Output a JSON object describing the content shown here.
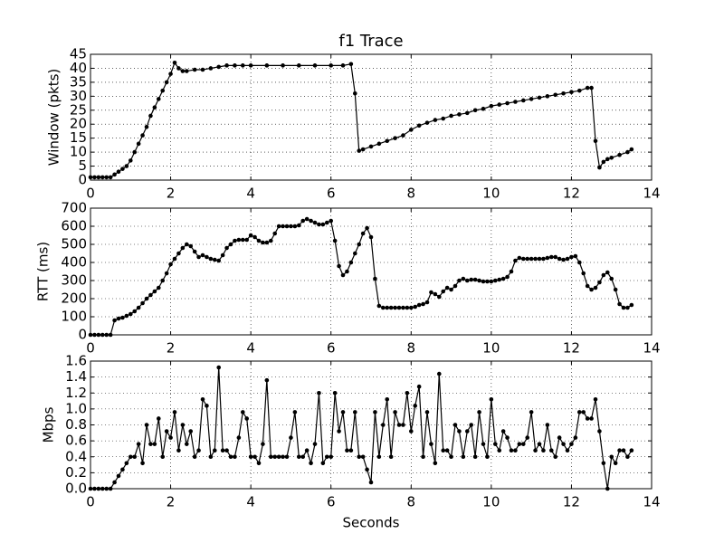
{
  "chart_data": [
    {
      "type": "line",
      "title": "f1 Trace",
      "y_label": "Window (pkts)",
      "color": "#000000",
      "grid": true,
      "x": [
        0,
        0.1,
        0.2,
        0.3,
        0.4,
        0.5,
        0.6,
        0.7,
        0.8,
        0.9,
        1.0,
        1.1,
        1.2,
        1.3,
        1.4,
        1.5,
        1.6,
        1.7,
        1.8,
        1.9,
        2.0,
        2.1,
        2.2,
        2.3,
        2.4,
        2.6,
        2.8,
        3.0,
        3.2,
        3.4,
        3.6,
        3.8,
        4.0,
        4.4,
        4.8,
        5.2,
        5.6,
        6.0,
        6.3,
        6.5,
        6.6,
        6.7,
        6.8,
        7.0,
        7.2,
        7.4,
        7.6,
        7.8,
        8.0,
        8.2,
        8.4,
        8.6,
        8.8,
        9.0,
        9.2,
        9.4,
        9.6,
        9.8,
        10.0,
        10.2,
        10.4,
        10.6,
        10.8,
        11.0,
        11.2,
        11.4,
        11.6,
        11.8,
        12.0,
        12.2,
        12.4,
        12.5,
        12.6,
        12.7,
        12.8,
        12.9,
        13.0,
        13.2,
        13.4,
        13.5
      ],
      "values": [
        1,
        1,
        1,
        1,
        1,
        1,
        2,
        3,
        4,
        5,
        7,
        10,
        13,
        16,
        19,
        23,
        26,
        29,
        32,
        35,
        38,
        42,
        40,
        39,
        39,
        39.5,
        39.5,
        40,
        40.5,
        41,
        41,
        41,
        41,
        41,
        41,
        41,
        41,
        41,
        41,
        41.5,
        31,
        10.5,
        11,
        12,
        13,
        14,
        15,
        16,
        18,
        19.5,
        20.5,
        21.5,
        22,
        23,
        23.5,
        24,
        25,
        25.5,
        26.5,
        27,
        27.5,
        28,
        28.5,
        29,
        29.5,
        30,
        30.5,
        31,
        31.5,
        32,
        33,
        33,
        14,
        4.5,
        6.5,
        7.5,
        8,
        9,
        10,
        11
      ],
      "xlim": [
        0,
        14
      ],
      "xticks": [
        0,
        2,
        4,
        6,
        8,
        10,
        12,
        14
      ],
      "ylim": [
        0,
        45
      ],
      "yticks": [
        0,
        5,
        10,
        15,
        20,
        25,
        30,
        35,
        40,
        45
      ]
    },
    {
      "type": "line",
      "y_label": "RTT (ms)",
      "color": "#000000",
      "grid": true,
      "x": [
        0,
        0.1,
        0.2,
        0.3,
        0.4,
        0.5,
        0.6,
        0.7,
        0.8,
        0.9,
        1.0,
        1.1,
        1.2,
        1.3,
        1.4,
        1.5,
        1.6,
        1.7,
        1.8,
        1.9,
        2.0,
        2.1,
        2.2,
        2.3,
        2.4,
        2.5,
        2.6,
        2.7,
        2.8,
        2.9,
        3.0,
        3.1,
        3.2,
        3.3,
        3.4,
        3.5,
        3.6,
        3.7,
        3.8,
        3.9,
        4.0,
        4.1,
        4.2,
        4.3,
        4.4,
        4.5,
        4.6,
        4.7,
        4.8,
        4.9,
        5.0,
        5.1,
        5.2,
        5.3,
        5.4,
        5.5,
        5.6,
        5.7,
        5.8,
        5.9,
        6.0,
        6.1,
        6.2,
        6.3,
        6.4,
        6.5,
        6.6,
        6.7,
        6.8,
        6.9,
        7.0,
        7.1,
        7.2,
        7.3,
        7.4,
        7.5,
        7.6,
        7.7,
        7.8,
        7.9,
        8.0,
        8.1,
        8.2,
        8.3,
        8.4,
        8.5,
        8.6,
        8.7,
        8.8,
        8.9,
        9.0,
        9.1,
        9.2,
        9.3,
        9.4,
        9.5,
        9.6,
        9.7,
        9.8,
        9.9,
        10.0,
        10.1,
        10.2,
        10.3,
        10.4,
        10.5,
        10.6,
        10.7,
        10.8,
        10.9,
        11.0,
        11.1,
        11.2,
        11.3,
        11.4,
        11.5,
        11.6,
        11.7,
        11.8,
        11.9,
        12.0,
        12.1,
        12.2,
        12.3,
        12.4,
        12.5,
        12.6,
        12.7,
        12.8,
        12.9,
        13.0,
        13.1,
        13.2,
        13.3,
        13.4,
        13.5
      ],
      "values": [
        0,
        0,
        0,
        0,
        0,
        0,
        80,
        90,
        95,
        105,
        115,
        130,
        150,
        175,
        200,
        220,
        240,
        260,
        300,
        340,
        390,
        420,
        450,
        480,
        500,
        490,
        460,
        430,
        440,
        430,
        420,
        415,
        410,
        440,
        480,
        500,
        520,
        525,
        525,
        525,
        550,
        540,
        520,
        510,
        510,
        520,
        560,
        600,
        600,
        600,
        600,
        600,
        605,
        630,
        640,
        630,
        620,
        610,
        610,
        620,
        630,
        520,
        380,
        330,
        350,
        400,
        450,
        500,
        560,
        590,
        540,
        310,
        160,
        150,
        150,
        150,
        150,
        150,
        150,
        150,
        150,
        155,
        165,
        170,
        180,
        235,
        225,
        210,
        240,
        260,
        250,
        270,
        300,
        310,
        300,
        305,
        305,
        300,
        295,
        295,
        295,
        300,
        305,
        310,
        320,
        350,
        410,
        425,
        420,
        420,
        420,
        420,
        420,
        420,
        425,
        430,
        430,
        420,
        415,
        420,
        430,
        435,
        400,
        340,
        270,
        250,
        260,
        290,
        330,
        345,
        310,
        250,
        170,
        150,
        150,
        165
      ],
      "xlim": [
        0,
        14
      ],
      "xticks": [
        0,
        2,
        4,
        6,
        8,
        10,
        12,
        14
      ],
      "ylim": [
        0,
        700
      ],
      "yticks": [
        0,
        100,
        200,
        300,
        400,
        500,
        600,
        700
      ]
    },
    {
      "type": "line",
      "y_label": "Mbps",
      "x_label": "Seconds",
      "color": "#000000",
      "grid": true,
      "x": [
        0,
        0.1,
        0.2,
        0.3,
        0.4,
        0.5,
        0.6,
        0.7,
        0.8,
        0.9,
        1.0,
        1.1,
        1.2,
        1.3,
        1.4,
        1.5,
        1.6,
        1.7,
        1.8,
        1.9,
        2.0,
        2.1,
        2.2,
        2.3,
        2.4,
        2.5,
        2.6,
        2.7,
        2.8,
        2.9,
        3.0,
        3.1,
        3.2,
        3.3,
        3.4,
        3.5,
        3.6,
        3.7,
        3.8,
        3.9,
        4.0,
        4.1,
        4.2,
        4.3,
        4.4,
        4.5,
        4.6,
        4.7,
        4.8,
        4.9,
        5.0,
        5.1,
        5.2,
        5.3,
        5.4,
        5.5,
        5.6,
        5.7,
        5.8,
        5.9,
        6.0,
        6.1,
        6.2,
        6.3,
        6.4,
        6.5,
        6.6,
        6.7,
        6.8,
        6.9,
        7.0,
        7.1,
        7.2,
        7.3,
        7.4,
        7.5,
        7.6,
        7.7,
        7.8,
        7.9,
        8.0,
        8.1,
        8.2,
        8.3,
        8.4,
        8.5,
        8.6,
        8.7,
        8.8,
        8.9,
        9.0,
        9.1,
        9.2,
        9.3,
        9.4,
        9.5,
        9.6,
        9.7,
        9.8,
        9.9,
        10.0,
        10.1,
        10.2,
        10.3,
        10.4,
        10.5,
        10.6,
        10.7,
        10.8,
        10.9,
        11.0,
        11.1,
        11.2,
        11.3,
        11.4,
        11.5,
        11.6,
        11.7,
        11.8,
        11.9,
        12.0,
        12.1,
        12.2,
        12.3,
        12.4,
        12.5,
        12.6,
        12.7,
        12.8,
        12.9,
        13.0,
        13.1,
        13.2,
        13.3,
        13.4,
        13.5
      ],
      "values": [
        0,
        0,
        0,
        0,
        0,
        0,
        0.08,
        0.16,
        0.24,
        0.32,
        0.4,
        0.4,
        0.56,
        0.32,
        0.8,
        0.56,
        0.56,
        0.88,
        0.4,
        0.72,
        0.64,
        0.96,
        0.48,
        0.8,
        0.56,
        0.72,
        0.4,
        0.48,
        1.12,
        1.04,
        0.4,
        0.48,
        1.52,
        0.48,
        0.48,
        0.4,
        0.4,
        0.64,
        0.96,
        0.88,
        0.4,
        0.4,
        0.32,
        0.56,
        1.36,
        0.4,
        0.4,
        0.4,
        0.4,
        0.4,
        0.64,
        0.96,
        0.4,
        0.4,
        0.48,
        0.32,
        0.56,
        1.2,
        0.32,
        0.4,
        0.4,
        1.2,
        0.72,
        0.96,
        0.48,
        0.48,
        0.96,
        0.4,
        0.4,
        0.24,
        0.08,
        0.96,
        0.4,
        0.8,
        1.12,
        0.4,
        0.96,
        0.8,
        0.8,
        1.2,
        0.72,
        1.04,
        1.28,
        0.4,
        0.96,
        0.56,
        0.32,
        1.44,
        0.48,
        0.48,
        0.4,
        0.8,
        0.72,
        0.4,
        0.72,
        0.8,
        0.4,
        0.96,
        0.56,
        0.4,
        1.12,
        0.56,
        0.48,
        0.72,
        0.64,
        0.48,
        0.48,
        0.56,
        0.56,
        0.64,
        0.96,
        0.48,
        0.56,
        0.48,
        0.8,
        0.48,
        0.4,
        0.64,
        0.56,
        0.48,
        0.56,
        0.64,
        0.96,
        0.96,
        0.88,
        0.88,
        1.12,
        0.72,
        0.32,
        0,
        0.4,
        0.32,
        0.48,
        0.48,
        0.4,
        0.48
      ],
      "xlim": [
        0,
        14
      ],
      "xticks": [
        0,
        2,
        4,
        6,
        8,
        10,
        12,
        14
      ],
      "ylim": [
        0,
        1.6
      ],
      "yticks": [
        {
          "value": 0,
          "label": "0.0"
        },
        0.2,
        0.4,
        0.6,
        0.8,
        {
          "value": 1,
          "label": "1.0"
        },
        1.2,
        1.4,
        1.6
      ]
    }
  ]
}
